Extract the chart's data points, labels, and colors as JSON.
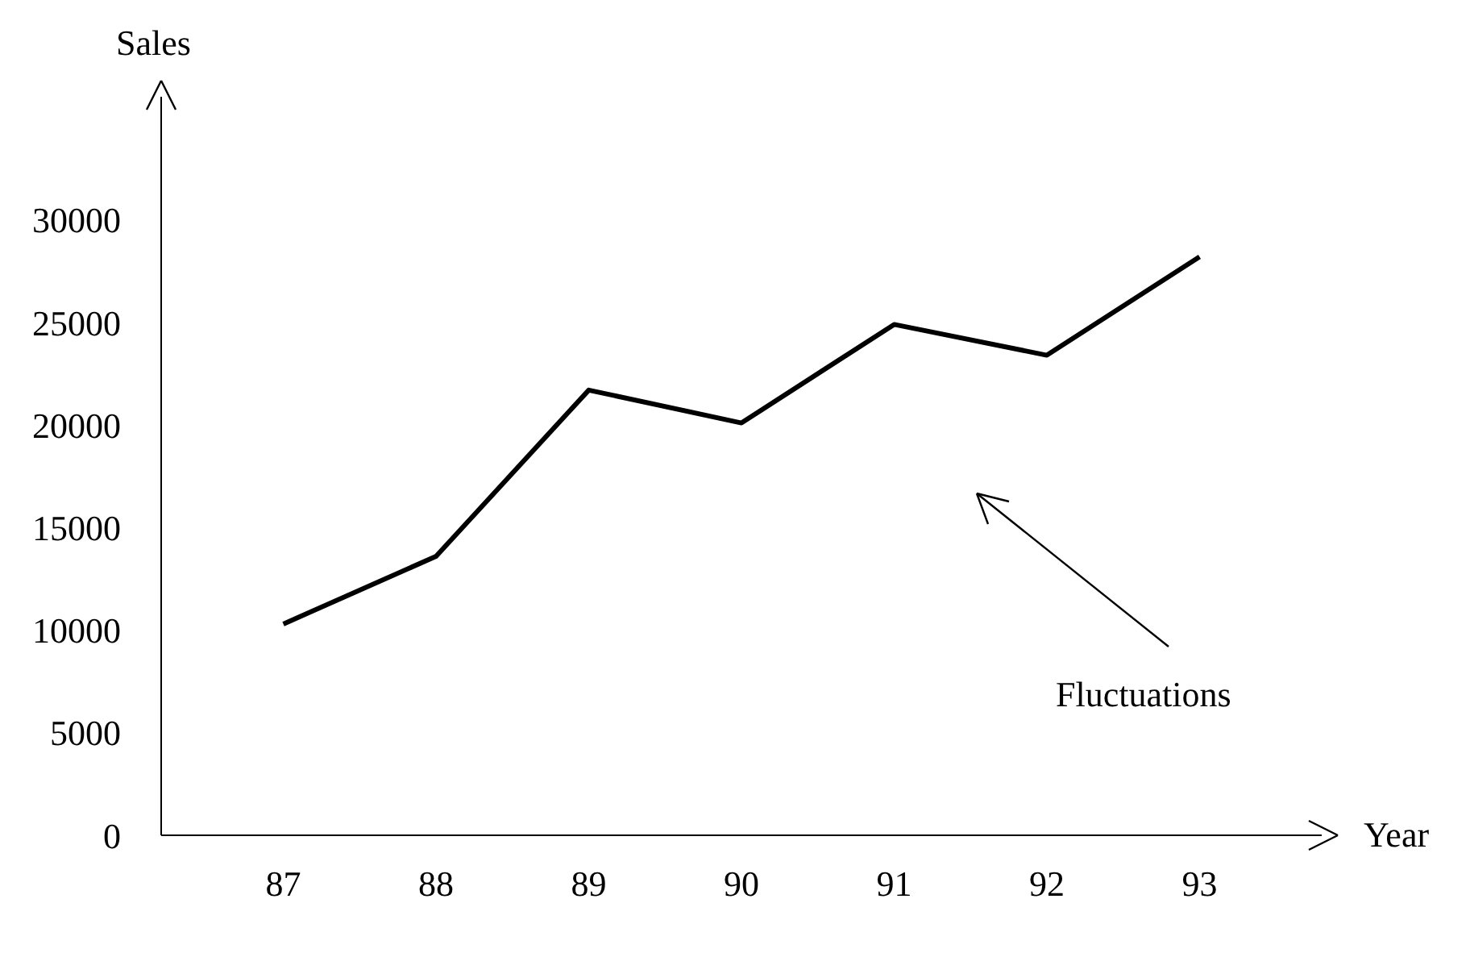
{
  "chart_data": {
    "type": "line",
    "xlabel": "Year",
    "ylabel": "Sales",
    "categories": [
      "87",
      "88",
      "89",
      "90",
      "91",
      "92",
      "93"
    ],
    "series": [
      {
        "color": "#000000",
        "values": [
          10300,
          13600,
          21700,
          20100,
          24900,
          23400,
          28200
        ]
      }
    ],
    "ylim": [
      0,
      36000
    ],
    "yticks": [
      0,
      5000,
      10000,
      15000,
      20000,
      25000,
      30000
    ],
    "grid": false,
    "legend": false,
    "marker": "none",
    "line_style": "solid",
    "annotations": [
      "Fluctuations"
    ]
  }
}
